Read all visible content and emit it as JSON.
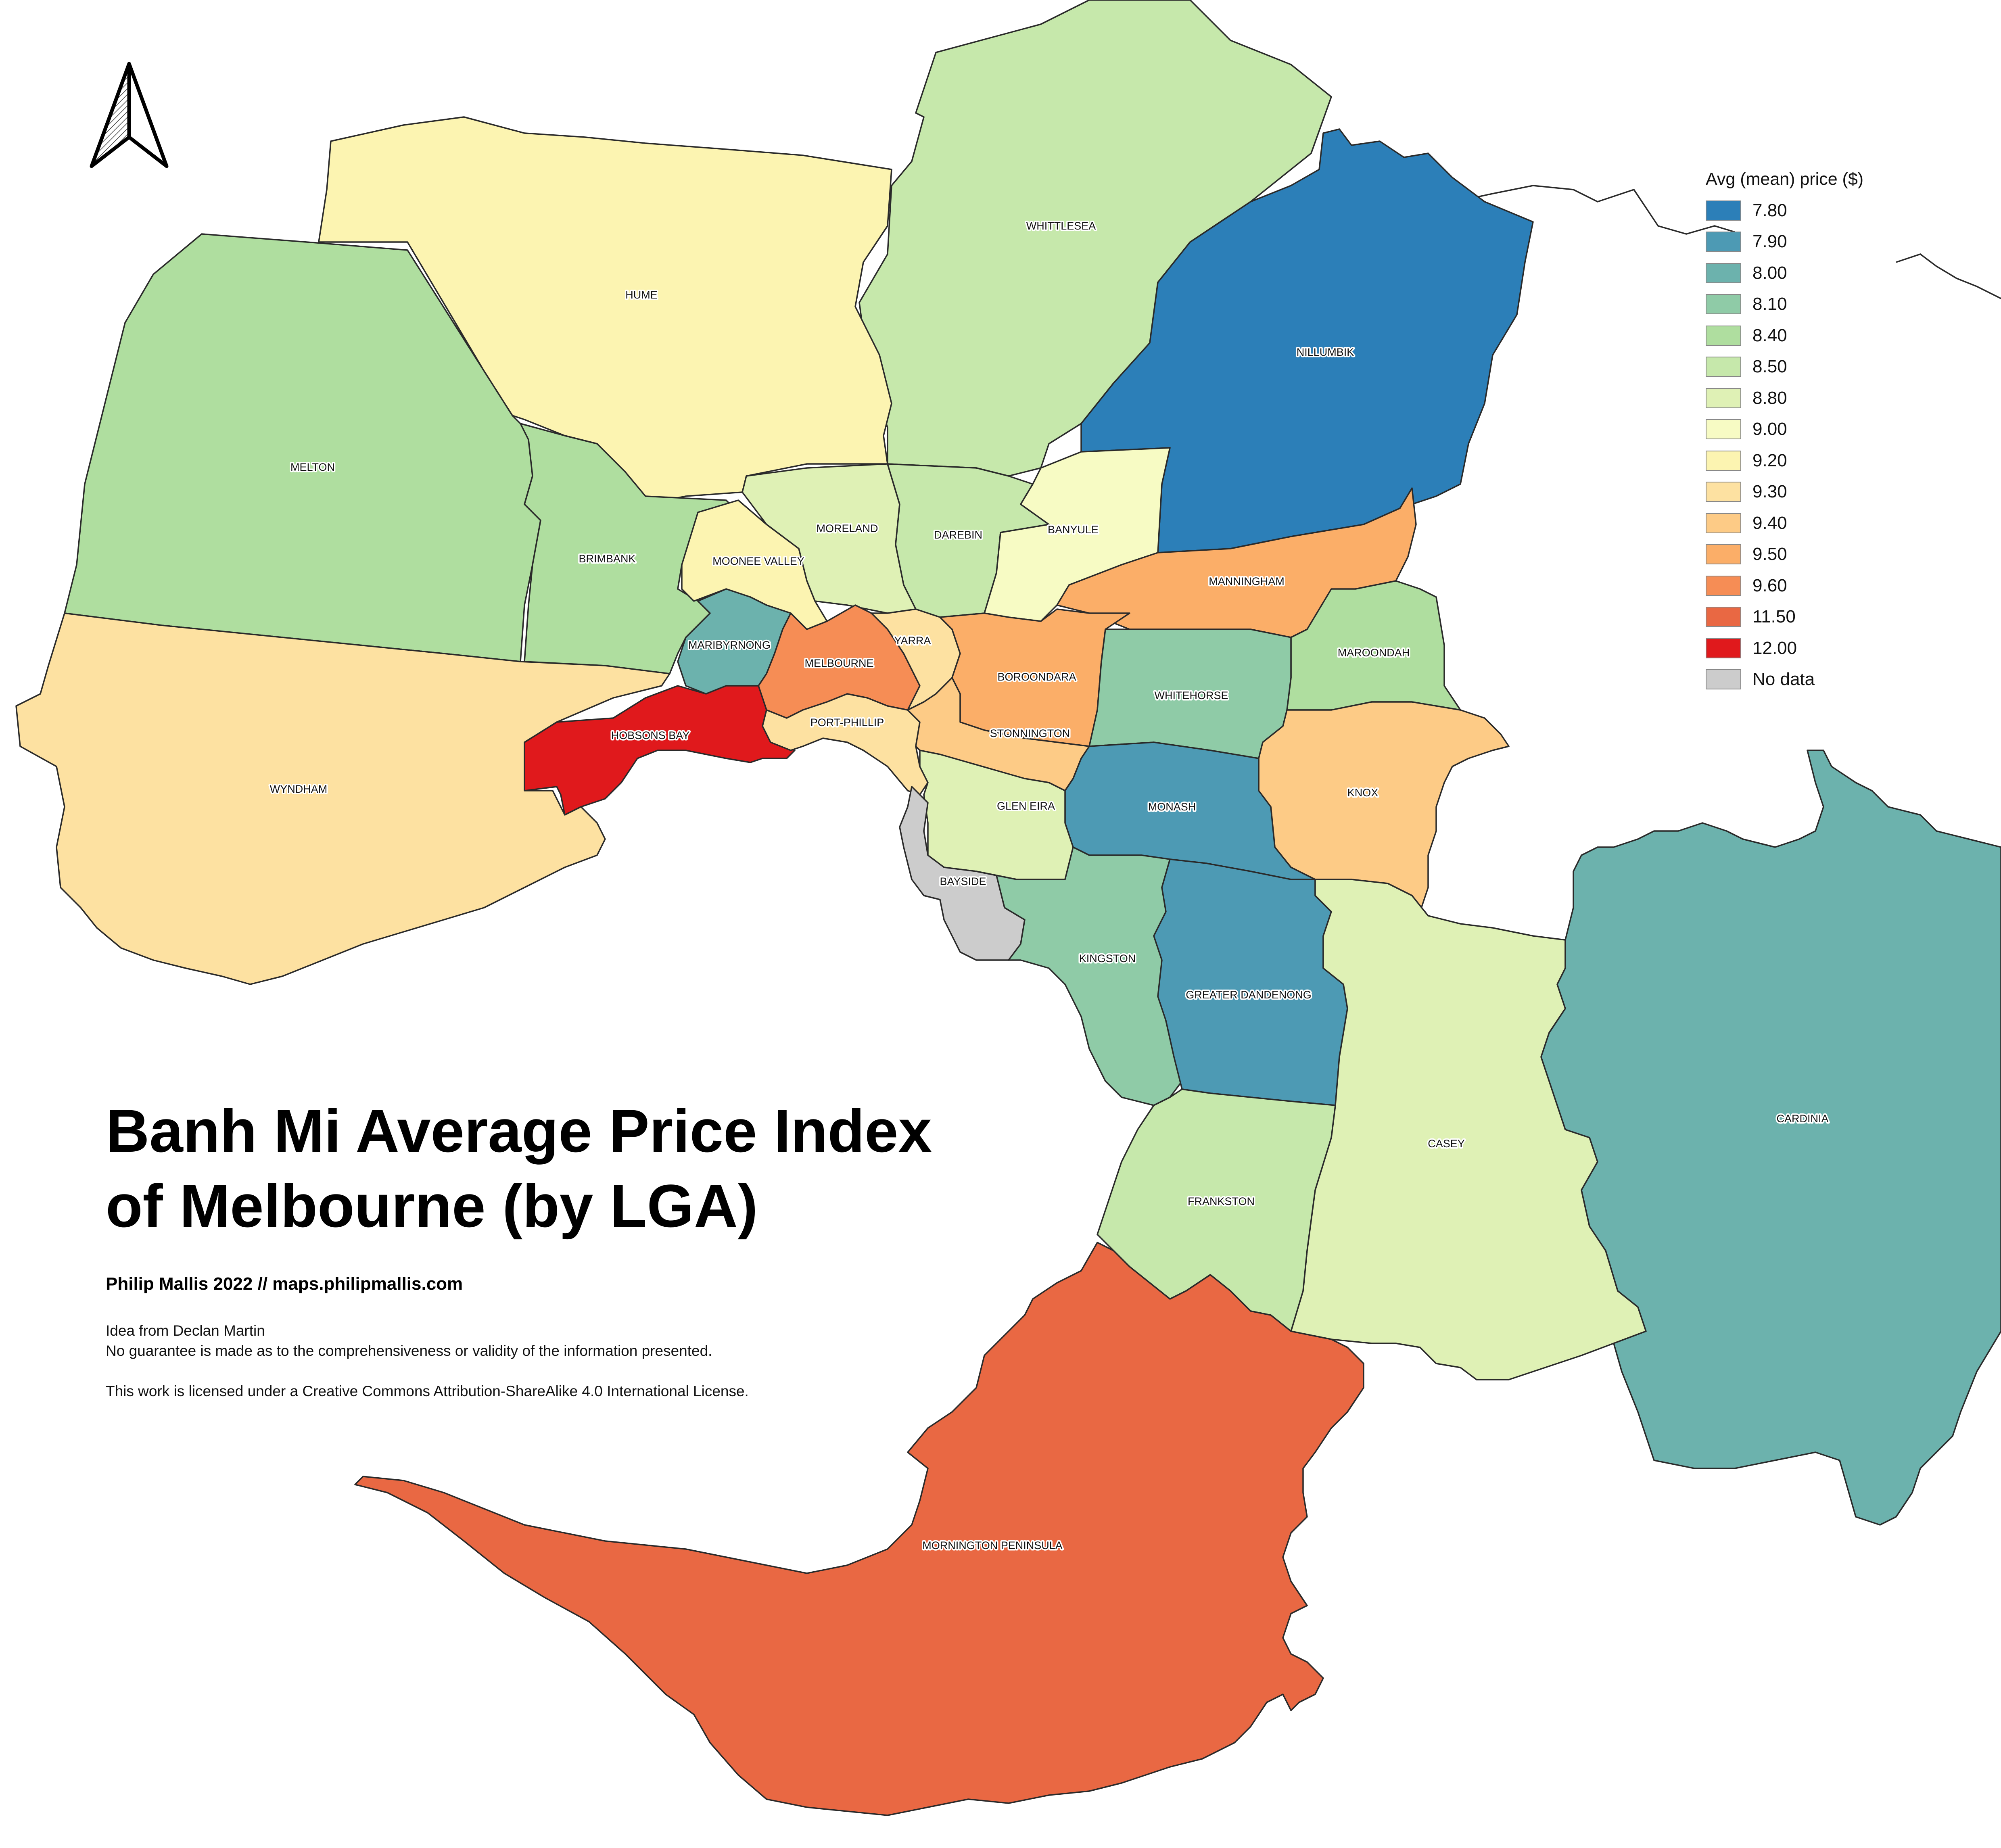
{
  "title_line1": "Banh Mi Average Price Index",
  "title_line2": "of Melbourne (by LGA)",
  "byline": "Philip Mallis 2022 // maps.philipmallis.com",
  "notes": [
    "Idea from Declan Martin",
    "No guarantee is made as to the comprehensiveness or validity of the information presented.",
    "This work is licensed under a Creative Commons Attribution-ShareAlike 4.0 International License."
  ],
  "north_arrow_icon": "north-arrow-icon",
  "legend": {
    "title": "Avg (mean) price ($)",
    "entries": [
      {
        "label": "7.80",
        "color": "#2c7fb8"
      },
      {
        "label": "7.90",
        "color": "#4d9ab4"
      },
      {
        "label": "8.00",
        "color": "#6cb2ad"
      },
      {
        "label": "8.10",
        "color": "#8fcba7"
      },
      {
        "label": "8.40",
        "color": "#afde9f"
      },
      {
        "label": "8.50",
        "color": "#c6e8ab"
      },
      {
        "label": "8.80",
        "color": "#dff1b5"
      },
      {
        "label": "9.00",
        "color": "#f7fbc4"
      },
      {
        "label": "9.20",
        "color": "#fcf4b1"
      },
      {
        "label": "9.30",
        "color": "#fde1a1"
      },
      {
        "label": "9.40",
        "color": "#fdcb86"
      },
      {
        "label": "9.50",
        "color": "#fbae68"
      },
      {
        "label": "9.60",
        "color": "#f68d55"
      },
      {
        "label": "11.50",
        "color": "#e96843"
      },
      {
        "label": "12.00",
        "color": "#e0191c"
      },
      {
        "label": "No data",
        "color": "#cccccc"
      }
    ]
  },
  "regions": [
    {
      "name": "WHITTLESEA",
      "price": 8.5,
      "color": "#c6e8ab"
    },
    {
      "name": "HUME",
      "price": 9.2,
      "color": "#fcf4b1"
    },
    {
      "name": "NILLUMBIK",
      "price": 7.8,
      "color": "#2c7fb8"
    },
    {
      "name": "MELTON",
      "price": 8.4,
      "color": "#afde9f"
    },
    {
      "name": "BRIMBANK",
      "price": 8.4,
      "color": "#afde9f"
    },
    {
      "name": "MORELAND",
      "price": 8.8,
      "color": "#dff1b5"
    },
    {
      "name": "DAREBIN",
      "price": 8.5,
      "color": "#c6e8ab"
    },
    {
      "name": "BANYULE",
      "price": 9.0,
      "color": "#f7fbc4"
    },
    {
      "name": "MOONEE VALLEY",
      "price": 9.2,
      "color": "#fcf4b1"
    },
    {
      "name": "MANNINGHAM",
      "price": 9.5,
      "color": "#fbae68"
    },
    {
      "name": "MARIBYRNONG",
      "price": 8.0,
      "color": "#6cb2ad"
    },
    {
      "name": "MELBOURNE",
      "price": 9.6,
      "color": "#f68d55"
    },
    {
      "name": "YARRA",
      "price": 9.3,
      "color": "#fde1a1"
    },
    {
      "name": "BOROONDARA",
      "price": 9.5,
      "color": "#fbae68"
    },
    {
      "name": "MAROONDAH",
      "price": 8.4,
      "color": "#afde9f"
    },
    {
      "name": "WHITEHORSE",
      "price": 8.1,
      "color": "#8fcba7"
    },
    {
      "name": "HOBSONS BAY",
      "price": 12.0,
      "color": "#e0191c"
    },
    {
      "name": "PORT-PHILLIP",
      "price": 9.3,
      "color": "#fde1a1"
    },
    {
      "name": "STONNINGTON",
      "price": 9.4,
      "color": "#fdcb86"
    },
    {
      "name": "WYNDHAM",
      "price": 9.3,
      "color": "#fde1a1"
    },
    {
      "name": "KNOX",
      "price": 9.4,
      "color": "#fdcb86"
    },
    {
      "name": "MONASH",
      "price": 7.9,
      "color": "#4d9ab4"
    },
    {
      "name": "GLEN EIRA",
      "price": 8.8,
      "color": "#dff1b5"
    },
    {
      "name": "BAYSIDE",
      "price": null,
      "color": "#cccccc"
    },
    {
      "name": "KINGSTON",
      "price": 8.1,
      "color": "#8fcba7"
    },
    {
      "name": "GREATER DANDENONG",
      "price": 7.9,
      "color": "#4d9ab4"
    },
    {
      "name": "CASEY",
      "price": 8.8,
      "color": "#dff1b5"
    },
    {
      "name": "CARDINIA",
      "price": 8.0,
      "color": "#6cb2ad"
    },
    {
      "name": "FRANKSTON",
      "price": 8.5,
      "color": "#c6e8ab"
    },
    {
      "name": "MORNINGTON PENINSULA",
      "price": 11.5,
      "color": "#e96843"
    }
  ]
}
